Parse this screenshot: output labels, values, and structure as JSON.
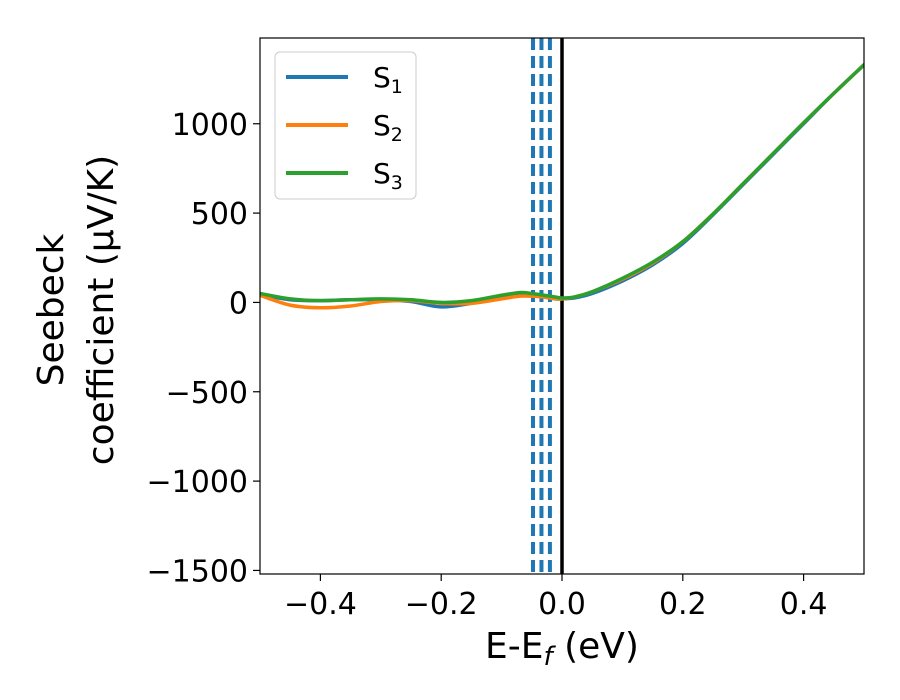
{
  "chart_data": {
    "type": "line",
    "xlabel": "E-E",
    "xlabel_sub": "f",
    "xlabel_unit": " (eV)",
    "ylabel_line1": "Seebeck",
    "ylabel_line2": "coefficient  (μV/K)",
    "xlim": [
      -0.5,
      0.5
    ],
    "ylim": [
      -1520,
      1480
    ],
    "xticks": [
      -0.4,
      -0.2,
      0.0,
      0.2,
      0.4
    ],
    "xtick_labels": [
      "−0.4",
      "−0.2",
      "0.0",
      "0.2",
      "0.4"
    ],
    "yticks": [
      -1500,
      -1000,
      -500,
      0,
      500,
      1000
    ],
    "ytick_labels": [
      "−1500",
      "−1000",
      "−500",
      "0",
      "500",
      "1000"
    ],
    "grid": false,
    "legend_position": "top-left",
    "series": [
      {
        "name": "S",
        "sub": "1",
        "color": "#1f77b4",
        "x": [
          -0.5,
          -0.45,
          -0.4,
          -0.35,
          -0.3,
          -0.25,
          -0.2,
          -0.15,
          -0.1,
          -0.07,
          -0.05,
          -0.03,
          -0.01,
          0.0,
          0.02,
          0.05,
          0.1,
          0.15,
          0.2,
          0.25,
          0.3,
          0.35,
          0.4,
          0.45,
          0.5
        ],
        "y": [
          45,
          15,
          10,
          15,
          15,
          5,
          -25,
          -5,
          25,
          45,
          40,
          30,
          20,
          20,
          25,
          50,
          120,
          210,
          330,
          490,
          660,
          830,
          1000,
          1170,
          1330
        ]
      },
      {
        "name": "S",
        "sub": "2",
        "color": "#ff7f0e",
        "x": [
          -0.5,
          -0.45,
          -0.4,
          -0.35,
          -0.3,
          -0.25,
          -0.2,
          -0.15,
          -0.1,
          -0.07,
          -0.05,
          -0.03,
          -0.01,
          0.0,
          0.02,
          0.05,
          0.1,
          0.15,
          0.2,
          0.25,
          0.3,
          0.35,
          0.4,
          0.45,
          0.5
        ],
        "y": [
          40,
          -15,
          -30,
          -20,
          5,
          10,
          -5,
          -5,
          20,
          35,
          35,
          30,
          20,
          20,
          30,
          60,
          130,
          220,
          340,
          495,
          665,
          835,
          1005,
          1170,
          1330
        ]
      },
      {
        "name": "S",
        "sub": "3",
        "color": "#2ca02c",
        "x": [
          -0.5,
          -0.45,
          -0.4,
          -0.35,
          -0.3,
          -0.25,
          -0.2,
          -0.15,
          -0.1,
          -0.07,
          -0.05,
          -0.03,
          -0.01,
          0.0,
          0.02,
          0.05,
          0.1,
          0.15,
          0.2,
          0.25,
          0.3,
          0.35,
          0.4,
          0.45,
          0.5
        ],
        "y": [
          50,
          20,
          10,
          15,
          20,
          15,
          0,
          10,
          40,
          55,
          50,
          40,
          30,
          25,
          30,
          60,
          135,
          225,
          340,
          495,
          665,
          835,
          1005,
          1170,
          1330
        ]
      }
    ],
    "vertical_lines": [
      {
        "x": -0.048,
        "style": "dashed",
        "color": "#1f77b4"
      },
      {
        "x": -0.034,
        "style": "dashed",
        "color": "#1f77b4"
      },
      {
        "x": -0.02,
        "style": "dashed",
        "color": "#1f77b4"
      },
      {
        "x": 0.0,
        "style": "solid",
        "color": "#000000"
      }
    ]
  }
}
